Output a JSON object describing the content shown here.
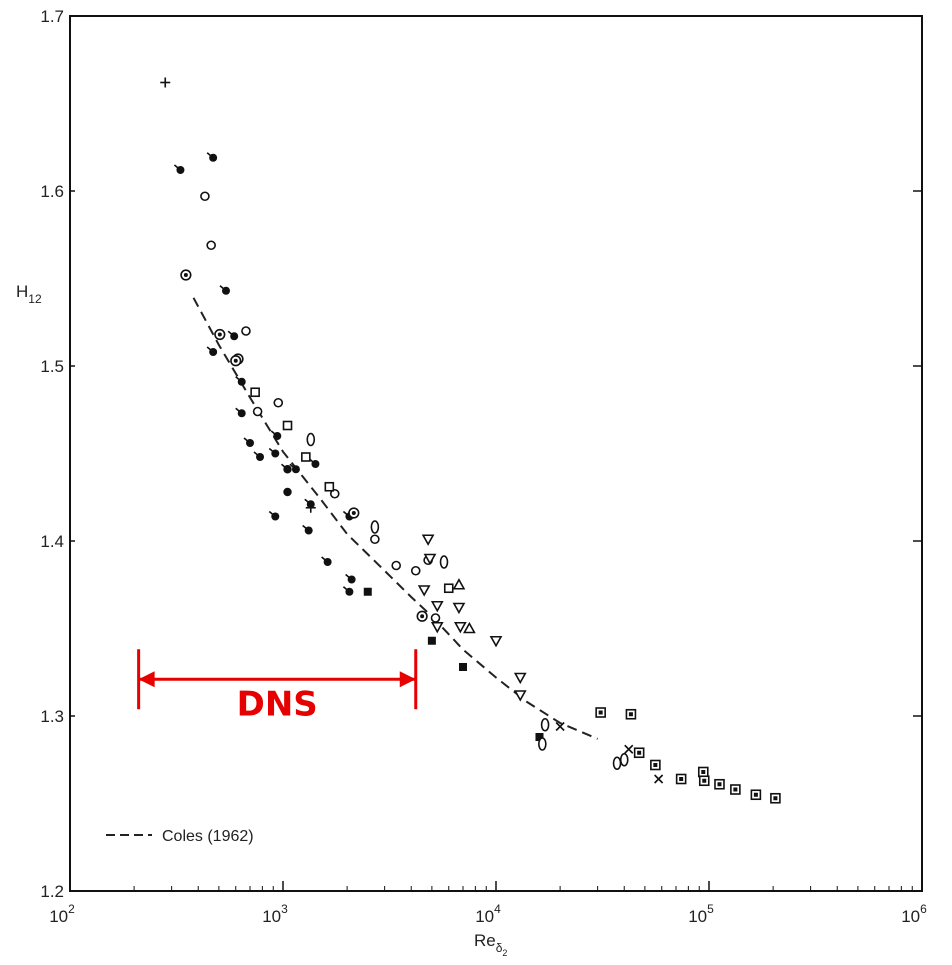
{
  "chart_data": {
    "type": "scatter",
    "title": "",
    "xlabel_main": "Re",
    "xlabel_sub": "δ",
    "xlabel_subsub": "2",
    "ylabel_main": "H",
    "ylabel_sub": "12",
    "x_scale": "log",
    "xlim": [
      100,
      1000000
    ],
    "ylim": [
      1.2,
      1.7
    ],
    "grid": false,
    "x_ticks": [
      {
        "value": 100,
        "base": "10",
        "exp": "2"
      },
      {
        "value": 1000,
        "base": "10",
        "exp": "3"
      },
      {
        "value": 10000,
        "base": "10",
        "exp": "4"
      },
      {
        "value": 100000,
        "base": "10",
        "exp": "5"
      },
      {
        "value": 1000000,
        "base": "10",
        "exp": "6"
      }
    ],
    "y_ticks": [
      {
        "value": 1.2,
        "label": "1.2"
      },
      {
        "value": 1.3,
        "label": "1.3"
      },
      {
        "value": 1.4,
        "label": "1.4"
      },
      {
        "value": 1.5,
        "label": "1.5"
      },
      {
        "value": 1.6,
        "label": "1.6"
      },
      {
        "value": 1.7,
        "label": "1.7"
      }
    ],
    "legend": {
      "placement": "bottom-left",
      "entries": [
        {
          "label": "Coles (1962)",
          "style": "dashed"
        }
      ]
    },
    "annotation": {
      "text": "DNS",
      "color": "#e60000",
      "x_range": [
        210,
        4200
      ],
      "y": 1.321
    },
    "reference_curve": {
      "name": "Coles (1962)",
      "x": [
        380,
        500,
        700,
        1000,
        1500,
        2000,
        3000,
        4000,
        5000,
        7000,
        10000,
        14000,
        20000,
        30000
      ],
      "y": [
        1.539,
        1.512,
        1.482,
        1.451,
        1.424,
        1.404,
        1.383,
        1.368,
        1.357,
        1.338,
        1.322,
        1.308,
        1.296,
        1.287
      ]
    },
    "series": [
      {
        "marker": "filled-flag",
        "x": [
          330,
          470,
          540,
          590,
          470,
          640,
          640,
          700,
          780,
          920,
          940,
          1050,
          1150,
          1320,
          1420,
          2050,
          1620,
          1350,
          2100,
          2050,
          920
        ],
        "y": [
          1.612,
          1.619,
          1.543,
          1.517,
          1.508,
          1.491,
          1.473,
          1.456,
          1.448,
          1.45,
          1.46,
          1.441,
          1.441,
          1.406,
          1.444,
          1.414,
          1.388,
          1.421,
          1.378,
          1.371,
          1.414
        ]
      },
      {
        "marker": "filled-circle",
        "x": [
          1050,
          2100,
          1050
        ],
        "y": [
          1.428,
          1.415,
          1.441
        ]
      },
      {
        "marker": "filled-square",
        "x": [
          2500,
          5000,
          7000,
          16000
        ],
        "y": [
          1.371,
          1.343,
          1.328,
          1.288
        ]
      },
      {
        "marker": "open-circle",
        "x": [
          430,
          460,
          670,
          760,
          3400,
          4200,
          4800,
          5200,
          2700,
          1750,
          950
        ],
        "y": [
          1.597,
          1.569,
          1.52,
          1.474,
          1.386,
          1.383,
          1.389,
          1.356,
          1.401,
          1.427,
          1.479
        ]
      },
      {
        "marker": "circled-dot",
        "x": [
          350,
          505,
          615,
          600,
          4500,
          2150
        ],
        "y": [
          1.552,
          1.518,
          1.504,
          1.503,
          1.357,
          1.416
        ]
      },
      {
        "marker": "open-square",
        "x": [
          740,
          1050,
          1280,
          1650,
          6000
        ],
        "y": [
          1.485,
          1.466,
          1.448,
          1.431,
          1.373
        ]
      },
      {
        "marker": "open-triangle-down",
        "x": [
          4800,
          4900,
          5300,
          5300,
          4600,
          6700,
          6800,
          10000,
          13000,
          13000
        ],
        "y": [
          1.401,
          1.39,
          1.363,
          1.351,
          1.372,
          1.362,
          1.351,
          1.343,
          1.322,
          1.312
        ]
      },
      {
        "marker": "open-triangle-up",
        "x": [
          6700,
          7500
        ],
        "y": [
          1.375,
          1.35
        ]
      },
      {
        "marker": "open-diamond",
        "x": [
          5700,
          1350,
          2700,
          37000,
          40000,
          17000,
          16500
        ],
        "y": [
          1.388,
          1.458,
          1.408,
          1.273,
          1.275,
          1.295,
          1.284
        ]
      },
      {
        "marker": "plus",
        "x": [
          280,
          1350
        ],
        "y": [
          1.662,
          1.419
        ]
      },
      {
        "marker": "cross",
        "x": [
          20000,
          42000,
          58000
        ],
        "y": [
          1.294,
          1.281,
          1.264
        ]
      },
      {
        "marker": "boxed-dot",
        "x": [
          31000,
          43000,
          47000,
          56000,
          74000,
          94000,
          95000,
          112000,
          133000,
          166000,
          205000
        ],
        "y": [
          1.302,
          1.301,
          1.279,
          1.272,
          1.264,
          1.268,
          1.263,
          1.261,
          1.258,
          1.255,
          1.253
        ]
      }
    ]
  }
}
